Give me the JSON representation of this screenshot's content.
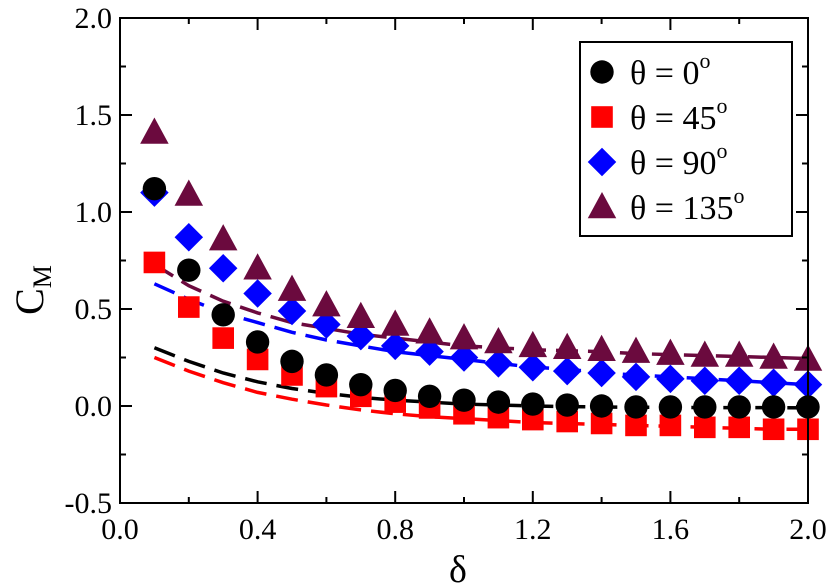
{
  "chart_data": {
    "type": "scatter",
    "xlabel": "δ",
    "ylabel": "C",
    "ylabel_sub": "M",
    "xlim": [
      0.0,
      2.0
    ],
    "ylim": [
      -0.5,
      2.0
    ],
    "xticks": [
      {
        "value": 0.0,
        "label": "0.0"
      },
      {
        "value": 0.4,
        "label": "0.4"
      },
      {
        "value": 0.8,
        "label": "0.8"
      },
      {
        "value": 1.2,
        "label": "1.2"
      },
      {
        "value": 1.6,
        "label": "1.6"
      },
      {
        "value": 2.0,
        "label": "2.0"
      }
    ],
    "yticks": [
      {
        "value": -0.5,
        "label": "-0.5"
      },
      {
        "value": 0.0,
        "label": "0.0"
      },
      {
        "value": 0.5,
        "label": "0.5"
      },
      {
        "value": 1.0,
        "label": "1.0"
      },
      {
        "value": 1.5,
        "label": "1.5"
      },
      {
        "value": 2.0,
        "label": "2.0"
      }
    ],
    "legend_position": "top-right",
    "x": [
      0.1,
      0.2,
      0.3,
      0.4,
      0.5,
      0.6,
      0.7,
      0.8,
      0.9,
      1.0,
      1.1,
      1.2,
      1.3,
      1.4,
      1.5,
      1.6,
      1.7,
      1.8,
      1.9,
      2.0
    ],
    "series": [
      {
        "name": "θ = 0°",
        "legend_prefix": "θ = 0",
        "legend_sup": "o",
        "marker": "circle",
        "color": "#000000",
        "values": [
          1.12,
          0.7,
          0.47,
          0.33,
          0.23,
          0.16,
          0.11,
          0.08,
          0.05,
          0.03,
          0.02,
          0.01,
          0.005,
          0.0,
          -0.005,
          -0.005,
          -0.005,
          -0.005,
          -0.005,
          -0.005
        ],
        "fit_x": [
          0.1,
          0.2,
          0.3,
          0.4,
          0.5,
          0.6,
          0.7,
          0.8,
          0.9,
          1.0,
          1.1,
          1.2,
          1.3,
          1.4,
          1.5,
          1.6,
          1.7,
          1.8,
          1.9,
          2.0
        ],
        "fit_y": [
          0.3,
          0.23,
          0.17,
          0.125,
          0.09,
          0.065,
          0.045,
          0.03,
          0.02,
          0.01,
          0.005,
          0.0,
          -0.003,
          -0.005,
          -0.006,
          -0.007,
          -0.008,
          -0.008,
          -0.009,
          -0.01
        ]
      },
      {
        "name": "θ = 45°",
        "legend_prefix": "θ = 45",
        "legend_sup": "o",
        "marker": "square",
        "color": "#ff0000",
        "values": [
          0.74,
          0.51,
          0.35,
          0.24,
          0.16,
          0.1,
          0.05,
          0.02,
          -0.01,
          -0.04,
          -0.06,
          -0.07,
          -0.08,
          -0.09,
          -0.1,
          -0.1,
          -0.11,
          -0.11,
          -0.12,
          -0.12
        ],
        "fit_x": [
          0.1,
          0.2,
          0.3,
          0.4,
          0.5,
          0.6,
          0.7,
          0.8,
          0.9,
          1.0,
          1.1,
          1.2,
          1.3,
          1.4,
          1.5,
          1.6,
          1.7,
          1.8,
          1.9,
          2.0
        ],
        "fit_y": [
          0.25,
          0.18,
          0.12,
          0.07,
          0.035,
          0.005,
          -0.02,
          -0.04,
          -0.055,
          -0.065,
          -0.075,
          -0.085,
          -0.09,
          -0.095,
          -0.1,
          -0.105,
          -0.11,
          -0.115,
          -0.12,
          -0.12
        ]
      },
      {
        "name": "θ = 90°",
        "legend_prefix": "θ = 90",
        "legend_sup": "o",
        "marker": "diamond",
        "color": "#0000ff",
        "values": [
          1.1,
          0.87,
          0.71,
          0.58,
          0.49,
          0.42,
          0.36,
          0.31,
          0.28,
          0.25,
          0.22,
          0.2,
          0.18,
          0.17,
          0.15,
          0.14,
          0.13,
          0.13,
          0.12,
          0.11
        ],
        "fit_x": [
          0.1,
          0.2,
          0.3,
          0.4,
          0.5,
          0.6,
          0.7,
          0.8,
          0.9,
          1.0,
          1.1,
          1.2,
          1.3,
          1.4,
          1.5,
          1.6,
          1.7,
          1.8,
          1.9,
          2.0
        ],
        "fit_y": [
          0.63,
          0.55,
          0.48,
          0.43,
          0.38,
          0.34,
          0.31,
          0.28,
          0.26,
          0.24,
          0.22,
          0.2,
          0.19,
          0.17,
          0.16,
          0.15,
          0.14,
          0.13,
          0.12,
          0.11
        ]
      },
      {
        "name": "θ = 135°",
        "legend_prefix": "θ = 135",
        "legend_sup": "o",
        "marker": "triangle",
        "color": "#6b0a3e",
        "values": [
          1.41,
          1.09,
          0.86,
          0.71,
          0.6,
          0.52,
          0.46,
          0.42,
          0.38,
          0.35,
          0.33,
          0.31,
          0.3,
          0.29,
          0.28,
          0.27,
          0.26,
          0.26,
          0.25,
          0.24
        ],
        "fit_x": [
          0.1,
          0.2,
          0.3,
          0.4,
          0.5,
          0.6,
          0.7,
          0.8,
          0.9,
          1.0,
          1.1,
          1.2,
          1.3,
          1.4,
          1.5,
          1.6,
          1.7,
          1.8,
          1.9,
          2.0
        ],
        "fit_y": [
          0.73,
          0.62,
          0.54,
          0.48,
          0.43,
          0.4,
          0.37,
          0.35,
          0.33,
          0.31,
          0.3,
          0.29,
          0.285,
          0.28,
          0.27,
          0.265,
          0.26,
          0.255,
          0.25,
          0.245
        ]
      }
    ]
  }
}
